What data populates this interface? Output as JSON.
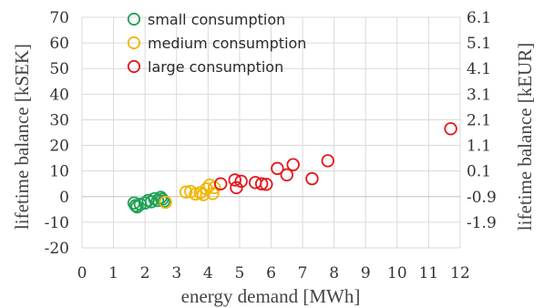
{
  "chart_data": {
    "type": "scatter",
    "title": "",
    "xlabel": "energy demand [MWh]",
    "ylabel": "lifetime balance [kSEK]",
    "y2label": "lifetime balance [kEUR]",
    "xlim": [
      0,
      12
    ],
    "ylim": [
      -20,
      70
    ],
    "x_ticks": [
      "0",
      "1",
      "2",
      "3",
      "4",
      "5",
      "6",
      "7",
      "8",
      "9",
      "10",
      "11",
      "12"
    ],
    "y_ticks": [
      "-20",
      "-10",
      "0",
      "10",
      "20",
      "30",
      "40",
      "50",
      "60",
      "70"
    ],
    "y2_ticks": [
      "-1.9",
      "-0.9",
      "0.1",
      "1.1",
      "2.1",
      "3.1",
      "4.1",
      "5.1",
      "6.1"
    ],
    "grid": true,
    "legend_position": "top-left",
    "series": [
      {
        "name": "small consumption",
        "color": "#1fa055",
        "points": [
          [
            1.65,
            -2.5
          ],
          [
            1.7,
            -3.5
          ],
          [
            1.75,
            -4.0
          ],
          [
            1.85,
            -3.0
          ],
          [
            2.0,
            -2.5
          ],
          [
            2.1,
            -1.5
          ],
          [
            2.2,
            -2.0
          ],
          [
            2.3,
            -0.8
          ],
          [
            2.4,
            -1.5
          ],
          [
            2.5,
            -0.3
          ],
          [
            2.55,
            -1.0
          ],
          [
            2.6,
            -1.8
          ]
        ]
      },
      {
        "name": "medium consumption",
        "color": "#f2b500",
        "points": [
          [
            2.65,
            -2.2
          ],
          [
            3.3,
            1.8
          ],
          [
            3.45,
            2.0
          ],
          [
            3.6,
            1.0
          ],
          [
            3.75,
            1.5
          ],
          [
            3.85,
            0.8
          ],
          [
            3.95,
            3.0
          ],
          [
            4.05,
            4.5
          ],
          [
            4.15,
            1.2
          ],
          [
            4.2,
            3.5
          ]
        ]
      },
      {
        "name": "large consumption",
        "color": "#e5161b",
        "points": [
          [
            4.4,
            5.0
          ],
          [
            4.85,
            6.5
          ],
          [
            4.9,
            3.5
          ],
          [
            5.05,
            6.0
          ],
          [
            5.5,
            5.5
          ],
          [
            5.7,
            5.0
          ],
          [
            5.85,
            4.8
          ],
          [
            6.2,
            11.0
          ],
          [
            6.5,
            8.5
          ],
          [
            6.7,
            12.5
          ],
          [
            7.3,
            7.0
          ],
          [
            7.8,
            14.0
          ],
          [
            11.7,
            26.5
          ]
        ]
      }
    ]
  }
}
